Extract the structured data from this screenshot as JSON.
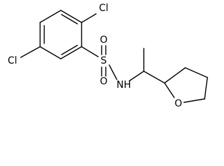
{
  "atoms": {
    "cl_top": "Cl",
    "cl_left": "Cl",
    "sulfur": "S",
    "o_top": "O",
    "o_bottom": "O",
    "nh": "NH",
    "o_ring": "O"
  }
}
